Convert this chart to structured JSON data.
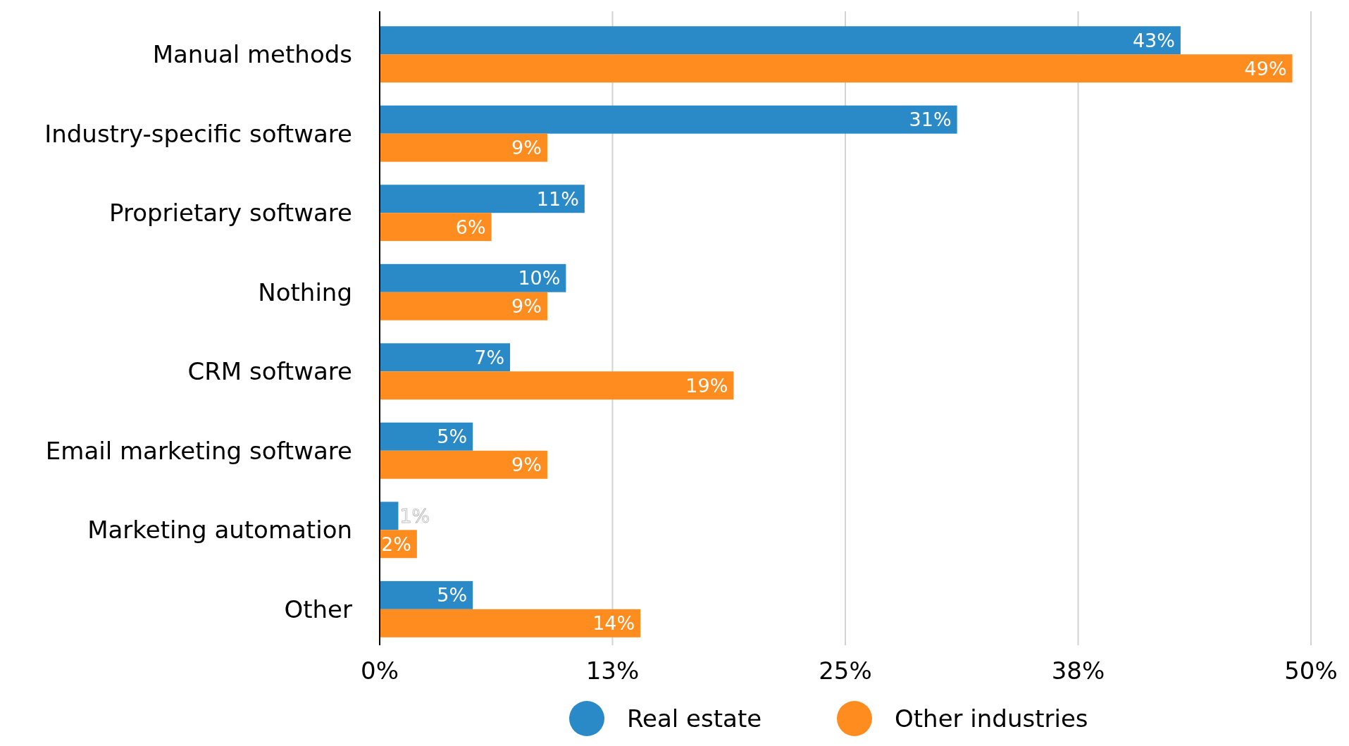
{
  "chart_data": {
    "type": "bar",
    "orientation": "horizontal",
    "categories": [
      "Manual methods",
      "Industry-specific software",
      "Proprietary software",
      "Nothing",
      "CRM software",
      "Email marketing software",
      "Marketing automation",
      "Other"
    ],
    "series": [
      {
        "name": "Real estate",
        "color": "#2a8ac8",
        "values": [
          43,
          31,
          11,
          10,
          7,
          5,
          1,
          5
        ],
        "value_labels": [
          "43%",
          "31%",
          "11%",
          "10%",
          "7%",
          "5%",
          "1%",
          "5%"
        ]
      },
      {
        "name": "Other industries",
        "color": "#ff8c1f",
        "values": [
          49,
          9,
          6,
          9,
          19,
          9,
          2,
          14
        ],
        "value_labels": [
          "49%",
          "9%",
          "6%",
          "9%",
          "19%",
          "9%",
          "2%",
          "14%"
        ]
      }
    ],
    "xlim": [
      0,
      50
    ],
    "xticks": [
      {
        "value": 0,
        "label": "0%"
      },
      {
        "value": 12.5,
        "label": "13%"
      },
      {
        "value": 25,
        "label": "25%"
      },
      {
        "value": 37.5,
        "label": "38%"
      },
      {
        "value": 50,
        "label": "50%"
      }
    ],
    "grid": "x",
    "legend": "bottom"
  }
}
